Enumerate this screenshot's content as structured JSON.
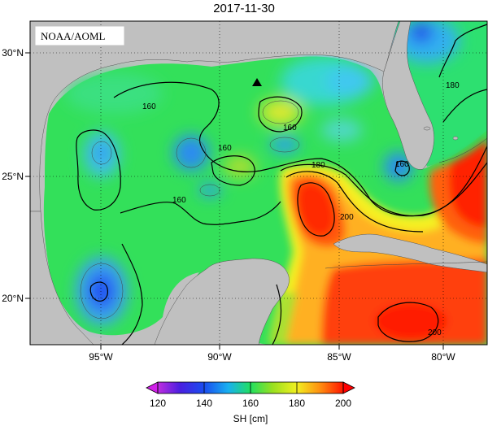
{
  "title": "2017-11-30",
  "credit": "NOAA/AOML",
  "lon_ticks": [
    "95°W",
    "90°W",
    "85°W",
    "80°W"
  ],
  "lat_ticks": [
    "30°N",
    "25°N",
    "20°N"
  ],
  "contour_labels": [
    "160",
    "160",
    "160",
    "160",
    "180",
    "180",
    "200",
    "200",
    "160"
  ],
  "colorbar": {
    "ticks": [
      "120",
      "140",
      "160",
      "180",
      "200"
    ],
    "label": "SH [cm]"
  },
  "colors": {
    "land": "#c0c0c0",
    "low": "#6a1bd8",
    "mid": "#19d84c",
    "high": "#ff1a00"
  },
  "marker": "black triangle"
}
